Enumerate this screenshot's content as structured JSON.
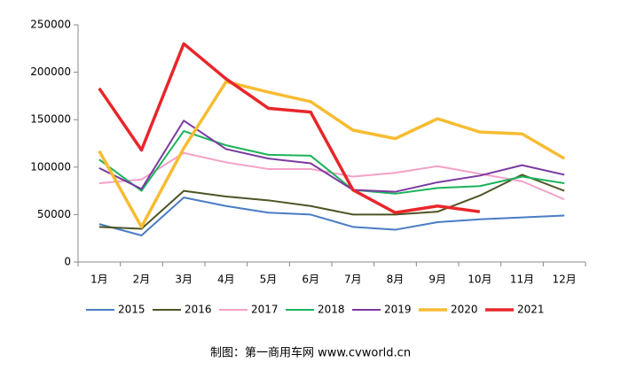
{
  "chart_data": {
    "type": "line",
    "categories": [
      "1月",
      "2月",
      "3月",
      "4月",
      "5月",
      "6月",
      "7月",
      "8月",
      "9月",
      "10月",
      "11月",
      "12月"
    ],
    "series": [
      {
        "name": "2015",
        "color": "#4a7cc4",
        "width": 2,
        "values": [
          40000,
          28000,
          68000,
          59000,
          52000,
          50000,
          37000,
          34000,
          42000,
          45000,
          47000,
          49000
        ]
      },
      {
        "name": "2016",
        "color": "#4d5524",
        "width": 2,
        "values": [
          37000,
          35000,
          75000,
          69000,
          65000,
          59000,
          50000,
          50000,
          53000,
          70000,
          92000,
          75000
        ]
      },
      {
        "name": "2017",
        "color": "#f5a0c8",
        "width": 2,
        "values": [
          83000,
          87000,
          115000,
          105000,
          98000,
          98000,
          90000,
          94000,
          101000,
          93000,
          85000,
          66000
        ]
      },
      {
        "name": "2018",
        "color": "#1bb35a",
        "width": 2,
        "values": [
          108000,
          75000,
          138000,
          123000,
          113000,
          112000,
          76000,
          72000,
          78000,
          80000,
          90000,
          83000
        ]
      },
      {
        "name": "2019",
        "color": "#7a3aa0",
        "width": 2,
        "values": [
          99000,
          77000,
          149000,
          119000,
          109000,
          104000,
          76000,
          74000,
          84000,
          91000,
          102000,
          92000
        ]
      },
      {
        "name": "2020",
        "color": "#f7bc32",
        "width": 3.5,
        "values": [
          117000,
          37000,
          120000,
          190000,
          179000,
          169000,
          139000,
          130000,
          151000,
          137000,
          135000,
          109000
        ]
      },
      {
        "name": "2021",
        "color": "#e8262a",
        "width": 3.5,
        "values": [
          183000,
          118000,
          230000,
          193000,
          162000,
          158000,
          76000,
          52000,
          59000,
          53000,
          null,
          null
        ]
      }
    ],
    "ylim": [
      0,
      250000
    ],
    "yticks": [
      0,
      50000,
      100000,
      150000,
      200000,
      250000
    ],
    "legend": "bottom",
    "footer": "制图：第一商用车网 www.cvworld.cn"
  }
}
